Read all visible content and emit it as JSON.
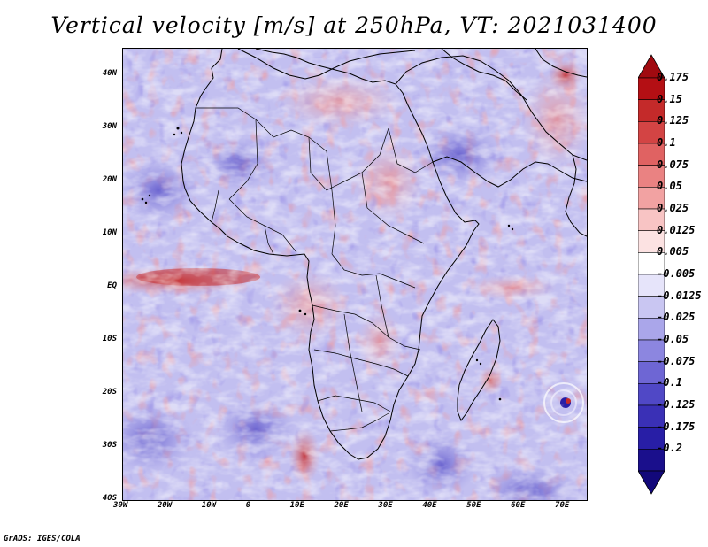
{
  "title": "Vertical velocity [m/s] at 250hPa, VT: 2021031400",
  "credit": "GrADS: IGES/COLA",
  "map": {
    "lon_range": [
      -30,
      75
    ],
    "lat_range": [
      -40,
      45
    ],
    "lat_ticks": [
      {
        "value": 40,
        "label": "40N"
      },
      {
        "value": 30,
        "label": "30N"
      },
      {
        "value": 20,
        "label": "20N"
      },
      {
        "value": 10,
        "label": "10N"
      },
      {
        "value": 0,
        "label": "EQ"
      },
      {
        "value": -10,
        "label": "10S"
      },
      {
        "value": -20,
        "label": "20S"
      },
      {
        "value": -30,
        "label": "30S"
      },
      {
        "value": -40,
        "label": "40S"
      }
    ],
    "lon_ticks": [
      {
        "value": -30,
        "label": "30W"
      },
      {
        "value": -20,
        "label": "20W"
      },
      {
        "value": -10,
        "label": "10W"
      },
      {
        "value": 0,
        "label": "0"
      },
      {
        "value": 10,
        "label": "10E"
      },
      {
        "value": 20,
        "label": "20E"
      },
      {
        "value": 30,
        "label": "30E"
      },
      {
        "value": 40,
        "label": "40E"
      },
      {
        "value": 50,
        "label": "50E"
      },
      {
        "value": 60,
        "label": "60E"
      },
      {
        "value": 70,
        "label": "70E"
      }
    ]
  },
  "colorbar": {
    "levels": [
      {
        "label": "0.175",
        "color": "#b40f14"
      },
      {
        "label": "0.15",
        "color": "#c42a2a"
      },
      {
        "label": "0.125",
        "color": "#d34444"
      },
      {
        "label": "0.1",
        "color": "#e06262"
      },
      {
        "label": "0.075",
        "color": "#ea8282"
      },
      {
        "label": "0.05",
        "color": "#f2a2a2"
      },
      {
        "label": "0.025",
        "color": "#f8c4c4"
      },
      {
        "label": "0.0125",
        "color": "#fce2e2"
      },
      {
        "label": "0.005",
        "color": "#ffffff"
      },
      {
        "label": "-0.005",
        "color": "#e6e4fa"
      },
      {
        "label": "-0.0125",
        "color": "#c9c6f2"
      },
      {
        "label": "-0.025",
        "color": "#aaa6ea"
      },
      {
        "label": "-0.05",
        "color": "#8c86e0"
      },
      {
        "label": "-0.075",
        "color": "#6e66d4"
      },
      {
        "label": "-0.1",
        "color": "#5048c6"
      },
      {
        "label": "-0.125",
        "color": "#3a30b6"
      },
      {
        "label": "-0.175",
        "color": "#281ea6"
      },
      {
        "label": "-0.2",
        "color": "#1a0f8c"
      }
    ],
    "over_color": "#a00a10",
    "under_color": "#12087a"
  }
}
